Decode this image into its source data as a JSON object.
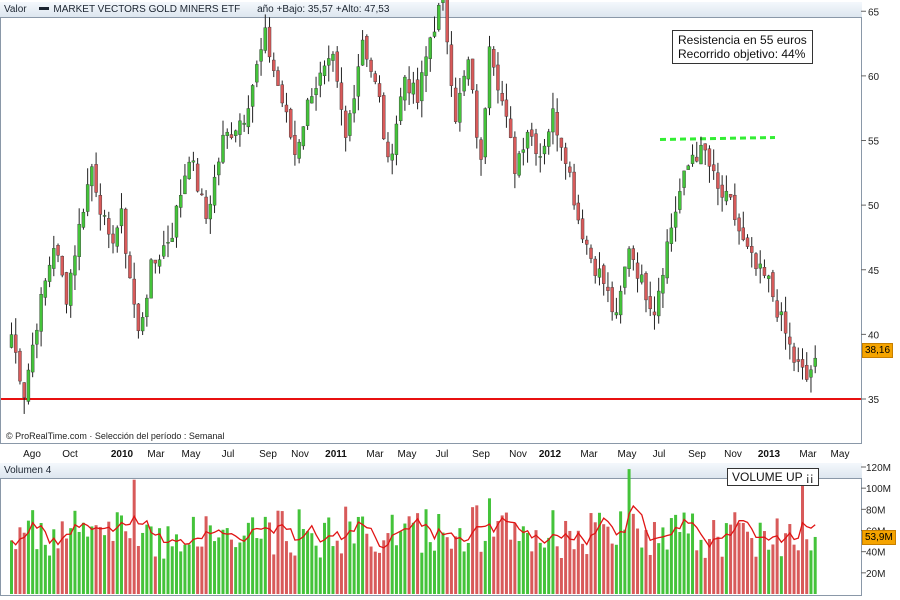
{
  "header": {
    "value_label": "Valor",
    "instrument": "MARKET VECTORS GOLD MINERS ETF",
    "stats": "año +Bajo: 35,57 +Alto: 47,53"
  },
  "volume_header": {
    "label": "Volumen 4"
  },
  "source_note": "© ProRealTime.com · Selección del período : Semanal",
  "annotations": {
    "resistance_line1": "Resistencia en 55 euros",
    "resistance_line2": "Recorrido objetivo: 44%",
    "volume_note": "VOLUME UP ¡¡"
  },
  "colors": {
    "up": "#44c33a",
    "down": "#d85a5a",
    "support": "#e81010",
    "resistance": "#33ee33",
    "volume_ma": "#e01414",
    "badge": "#f5a400"
  },
  "price_badge": "38,16",
  "volume_badge": "53,9M",
  "x_labels": [
    {
      "t": "Ago",
      "b": false
    },
    {
      "t": "Oct",
      "b": false
    },
    {
      "t": "2010",
      "b": true
    },
    {
      "t": "Mar",
      "b": false
    },
    {
      "t": "May",
      "b": false
    },
    {
      "t": "Jul",
      "b": false
    },
    {
      "t": "Sep",
      "b": false
    },
    {
      "t": "Nov",
      "b": false
    },
    {
      "t": "2011",
      "b": true
    },
    {
      "t": "Mar",
      "b": false
    },
    {
      "t": "May",
      "b": false
    },
    {
      "t": "Jul",
      "b": false
    },
    {
      "t": "Sep",
      "b": false
    },
    {
      "t": "Nov",
      "b": false
    },
    {
      "t": "2012",
      "b": true
    },
    {
      "t": "Mar",
      "b": false
    },
    {
      "t": "May",
      "b": false
    },
    {
      "t": "Jul",
      "b": false
    },
    {
      "t": "Sep",
      "b": false
    },
    {
      "t": "Nov",
      "b": false
    },
    {
      "t": "2013",
      "b": true
    },
    {
      "t": "Mar",
      "b": false
    },
    {
      "t": "May",
      "b": false
    }
  ],
  "chart_data": [
    {
      "type": "candlestick",
      "title": "MARKET VECTORS GOLD MINERS ETF",
      "period": "weekly",
      "y_ticks": [
        35,
        40,
        45,
        50,
        55,
        60,
        65
      ],
      "ylim": [
        32.5,
        67
      ],
      "support_level": 35,
      "resistance_level": 55,
      "last_price": 38.16,
      "waypoints": [
        [
          0,
          40
        ],
        [
          3,
          35.5
        ],
        [
          6,
          41
        ],
        [
          10,
          47
        ],
        [
          13,
          43
        ],
        [
          17,
          50
        ],
        [
          19,
          53
        ],
        [
          23,
          47
        ],
        [
          26,
          49
        ],
        [
          30,
          40
        ],
        [
          33,
          45
        ],
        [
          38,
          48
        ],
        [
          42,
          54
        ],
        [
          46,
          49
        ],
        [
          50,
          55
        ],
        [
          55,
          57
        ],
        [
          60,
          63
        ],
        [
          64,
          58
        ],
        [
          67,
          54
        ],
        [
          71,
          59
        ],
        [
          76,
          61
        ],
        [
          79,
          55
        ],
        [
          83,
          63
        ],
        [
          87,
          58
        ],
        [
          89,
          53
        ],
        [
          93,
          60
        ],
        [
          96,
          58
        ],
        [
          99,
          63
        ],
        [
          102,
          66
        ],
        [
          105,
          57
        ],
        [
          108,
          61
        ],
        [
          111,
          53
        ],
        [
          113,
          63
        ],
        [
          116,
          58
        ],
        [
          119,
          53
        ],
        [
          122,
          56
        ],
        [
          125,
          54
        ],
        [
          128,
          57
        ],
        [
          131,
          54
        ],
        [
          134,
          49
        ],
        [
          137,
          46
        ],
        [
          140,
          44
        ],
        [
          143,
          41
        ],
        [
          146,
          47
        ],
        [
          149,
          44
        ],
        [
          152,
          42
        ],
        [
          155,
          47
        ],
        [
          158,
          51
        ],
        [
          161,
          54
        ],
        [
          164,
          54
        ],
        [
          167,
          51
        ],
        [
          170,
          50
        ],
        [
          173,
          47
        ],
        [
          176,
          45
        ],
        [
          179,
          44
        ],
        [
          182,
          41
        ],
        [
          185,
          38
        ],
        [
          188,
          36.5
        ],
        [
          190,
          38.2
        ]
      ]
    },
    {
      "type": "bar",
      "title": "Volumen 4",
      "y_ticks": [
        "20M",
        "40M",
        "60M",
        "80M",
        "100M",
        "120M"
      ],
      "ylim": [
        0,
        120
      ],
      "last_value_millions": 53.9,
      "moving_average": true
    }
  ]
}
